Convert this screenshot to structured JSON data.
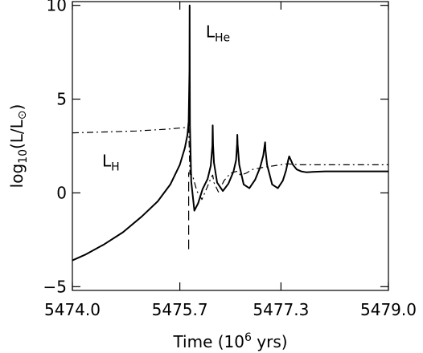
{
  "chart_data": {
    "type": "line",
    "xlabel": {
      "main": "Time (10",
      "sup": "6",
      "end": " yrs)"
    },
    "ylabel": {
      "main": "log",
      "sub": "10",
      "mid": "(L/L",
      "sym": "⊙",
      "end": ")"
    },
    "xlim": [
      5474.0,
      5479.0
    ],
    "ylim": [
      -5.2,
      10.2
    ],
    "xticks": [
      5474.0,
      5475.7,
      5477.3,
      5479.0
    ],
    "xtick_labels": [
      "5474.0",
      "5475.7",
      "5477.3",
      "5479.0"
    ],
    "yticks": [
      -5,
      0,
      5,
      10
    ],
    "ytick_labels": [
      "−5",
      "0",
      "5",
      "10"
    ],
    "grid": false,
    "annotations": [
      {
        "id": "LHe",
        "main": "L",
        "sub": "He",
        "x": 5476.11,
        "y": 8.3
      },
      {
        "id": "LH",
        "main": "L",
        "sub": "H",
        "x": 5474.47,
        "y": 1.4
      }
    ],
    "series": [
      {
        "style": "solid",
        "x": [
          5474.0,
          5474.2,
          5474.5,
          5474.8,
          5475.1,
          5475.35,
          5475.55,
          5475.7,
          5475.78,
          5475.82,
          5475.84,
          5475.852,
          5475.855,
          5475.857,
          5475.86,
          5475.88,
          5475.93,
          5475.99,
          5476.06,
          5476.14,
          5476.19,
          5476.215,
          5476.22,
          5476.225,
          5476.24,
          5476.29,
          5476.38,
          5476.47,
          5476.55,
          5476.59,
          5476.605,
          5476.61,
          5476.615,
          5476.64,
          5476.71,
          5476.8,
          5476.89,
          5476.97,
          5477.02,
          5477.045,
          5477.05,
          5477.055,
          5477.08,
          5477.16,
          5477.25,
          5477.33,
          5477.38,
          5477.415,
          5477.43,
          5477.45,
          5477.49,
          5477.55,
          5477.62,
          5477.7,
          5477.8,
          5478.0,
          5478.5,
          5479.0
        ],
        "y": [
          -3.6,
          -3.3,
          -2.75,
          -2.1,
          -1.25,
          -0.45,
          0.45,
          1.5,
          2.4,
          3.1,
          3.8,
          6.5,
          10.0,
          6.0,
          3.6,
          0.6,
          -0.95,
          -0.55,
          0.2,
          0.75,
          1.45,
          2.5,
          3.6,
          2.6,
          1.6,
          0.55,
          0.1,
          0.5,
          1.15,
          1.75,
          2.6,
          3.1,
          2.6,
          1.5,
          0.45,
          0.25,
          0.7,
          1.35,
          2.0,
          2.6,
          2.7,
          2.3,
          1.5,
          0.45,
          0.25,
          0.65,
          1.2,
          1.75,
          1.95,
          1.8,
          1.5,
          1.25,
          1.15,
          1.1,
          1.12,
          1.15,
          1.15,
          1.15
        ]
      },
      {
        "style": "dashdot",
        "x": [
          5474.0,
          5474.5,
          5475.0,
          5475.5,
          5475.84,
          5475.86,
          5475.9,
          5475.97,
          5476.05,
          5476.12,
          5476.2,
          5476.22,
          5476.24,
          5476.31,
          5476.4,
          5476.5,
          5476.6,
          5476.62,
          5476.66,
          5476.75,
          5476.85,
          5477.0,
          5477.2,
          5477.4,
          5477.6,
          5478.0,
          5478.5,
          5479.0
        ],
        "y": [
          3.2,
          3.25,
          3.3,
          3.4,
          3.5,
          1.0,
          0.95,
          0.1,
          -0.35,
          0.2,
          0.85,
          0.95,
          0.55,
          0.05,
          0.65,
          1.05,
          1.15,
          1.1,
          0.95,
          1.05,
          1.25,
          1.35,
          1.45,
          1.55,
          1.5,
          1.5,
          1.5,
          1.5
        ]
      },
      {
        "style": "longdash",
        "x": [
          5475.84,
          5475.84
        ],
        "y": [
          -3.0,
          1.1
        ]
      }
    ]
  }
}
